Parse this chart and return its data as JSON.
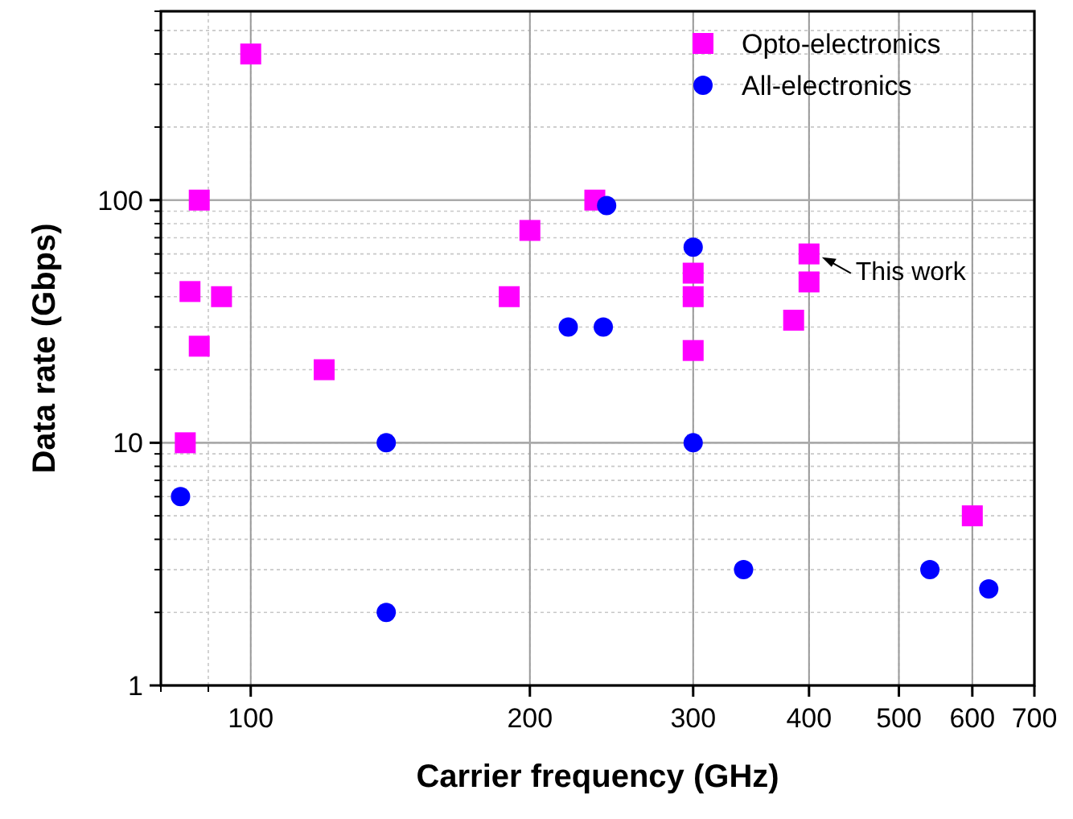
{
  "chart_data": {
    "type": "scatter",
    "xlabel": "Carrier frequency (GHz)",
    "ylabel": "Data rate (Gbps)",
    "log": "xy",
    "grid": true,
    "legend": "top right",
    "xlim": [
      80,
      700
    ],
    "xticks": [
      100,
      200,
      300,
      400,
      500,
      600,
      700
    ],
    "ylim": [
      1,
      600
    ],
    "yticks": [
      1,
      10,
      100
    ],
    "series": [
      {
        "name": "Opto-electronics",
        "color": "#ff00ff",
        "marker": "square",
        "x": [
          100,
          88,
          86,
          93,
          88,
          85,
          120,
          190,
          200,
          235,
          300,
          300,
          300,
          385,
          400,
          400,
          600
        ],
        "values": [
          400,
          100,
          42,
          40,
          25,
          10,
          20,
          40,
          75,
          100,
          50,
          40,
          24,
          32,
          60,
          46,
          5
        ]
      },
      {
        "name": "All-electronics",
        "color": "#0000ff",
        "marker": "circle",
        "x": [
          84,
          140,
          140,
          220,
          242,
          240,
          300,
          300,
          340,
          540,
          625
        ],
        "values": [
          6,
          10,
          2,
          30,
          95,
          30,
          64,
          10,
          3,
          3,
          2.5
        ]
      }
    ],
    "annotations": [
      {
        "text": "This work",
        "x": 400,
        "y": 60
      }
    ]
  }
}
